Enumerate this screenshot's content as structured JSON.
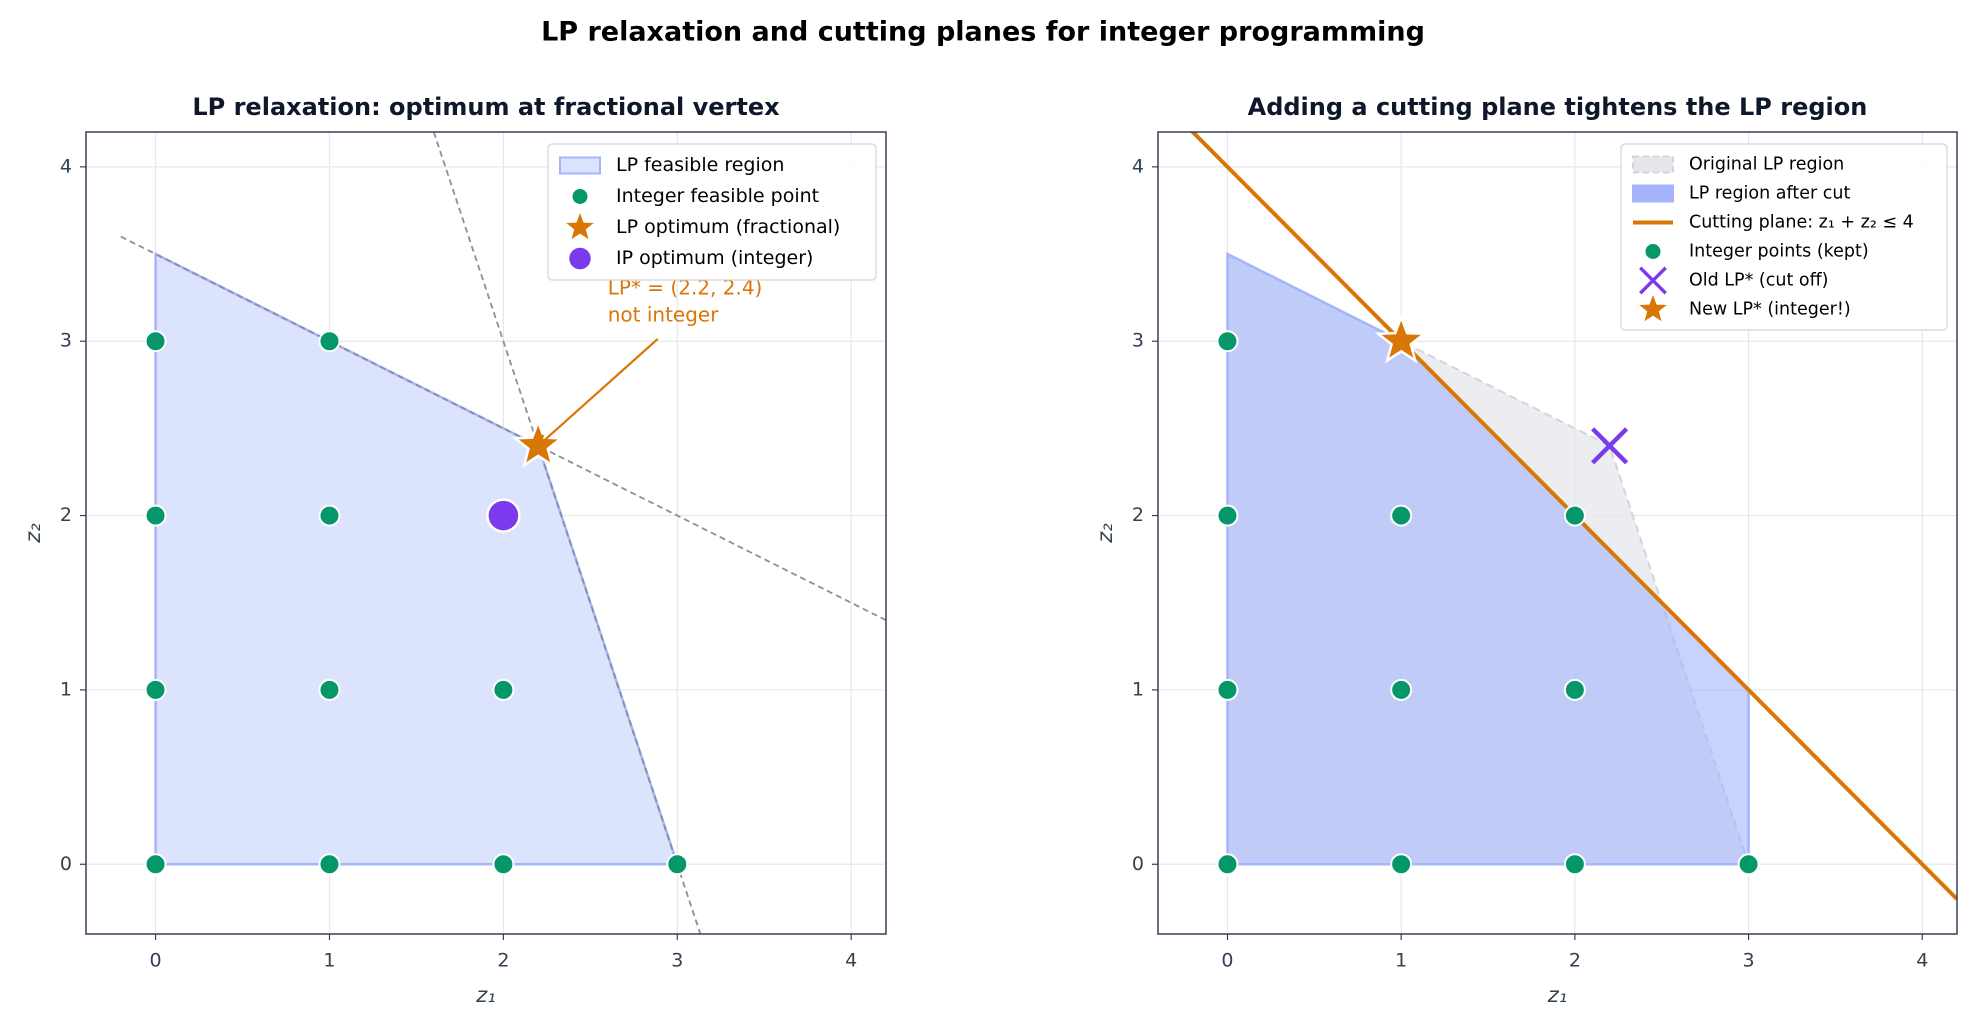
{
  "title": "LP relaxation and cutting planes for integer programming",
  "chart_data": [
    {
      "type": "scatter",
      "title": "LP relaxation: optimum at fractional vertex",
      "xlabel": "z₁",
      "ylabel": "z₂",
      "xlim": [
        -0.4,
        4.2
      ],
      "ylim": [
        -0.4,
        4.2
      ],
      "xticks": [
        0,
        1,
        2,
        3,
        4
      ],
      "yticks": [
        0,
        1,
        2,
        3,
        4
      ],
      "grid": true,
      "legend": "upper right",
      "series": [
        {
          "name": "LP feasible region",
          "kind": "region",
          "color": "#dbe3fd",
          "x": [
            0,
            3,
            2.2,
            0
          ],
          "y": [
            0,
            0,
            2.4,
            3.5
          ]
        },
        {
          "kind": "dashed",
          "color": "#8a8f9c",
          "x": [
            -0.2,
            4.2
          ],
          "y": [
            3.6,
            1.4
          ]
        },
        {
          "kind": "dashed",
          "color": "#8a8f9c",
          "x": [
            1.6,
            3.133
          ],
          "y": [
            4.2,
            -0.4
          ]
        },
        {
          "name": "Integer feasible point",
          "kind": "marker",
          "marker": "circle",
          "color": "#059669",
          "x": [
            0,
            1,
            2,
            3,
            0,
            1,
            2,
            0,
            1,
            0,
            1
          ],
          "y": [
            0,
            0,
            0,
            0,
            1,
            1,
            1,
            2,
            2,
            3,
            3
          ]
        },
        {
          "name": "LP optimum (fractional)",
          "kind": "marker",
          "marker": "star",
          "color": "#d97706",
          "x": [
            2.2
          ],
          "y": [
            2.4
          ]
        },
        {
          "name": "IP optimum (integer)",
          "kind": "marker",
          "marker": "bigcircle",
          "color": "#7c3aed",
          "x": [
            2
          ],
          "y": [
            2
          ]
        }
      ],
      "annotation": {
        "text": [
          "LP* = (2.2, 2.4)",
          "not integer"
        ],
        "color": "#d97706",
        "xy": [
          2.2,
          2.4
        ],
        "xytext": [
          2.6,
          3.3
        ]
      }
    },
    {
      "type": "scatter",
      "title": "Adding a cutting plane tightens the LP region",
      "xlabel": "z₁",
      "ylabel": "z₂",
      "xlim": [
        -0.4,
        4.2
      ],
      "ylim": [
        -0.4,
        4.2
      ],
      "xticks": [
        0,
        1,
        2,
        3,
        4
      ],
      "yticks": [
        0,
        1,
        2,
        3,
        4
      ],
      "grid": true,
      "legend": "upper right",
      "series": [
        {
          "name": "Original LP region",
          "kind": "region-gray",
          "color": "#e5e7eb",
          "x": [
            0,
            3,
            2.2,
            0
          ],
          "y": [
            0,
            0,
            2.4,
            3.5
          ]
        },
        {
          "name": "LP region after cut",
          "kind": "region",
          "color": "#a5b4fc",
          "x": [
            0,
            3,
            3,
            1,
            0
          ],
          "y": [
            0,
            0,
            1,
            3,
            3.5
          ]
        },
        {
          "name": "Cutting plane: z₁ + z₂ ≤ 4",
          "kind": "line",
          "color": "#d97706",
          "x": [
            -0.4,
            4.2
          ],
          "y": [
            4.4,
            -0.2
          ]
        },
        {
          "name": "Integer points (kept)",
          "kind": "marker",
          "marker": "circle",
          "color": "#059669",
          "x": [
            0,
            1,
            2,
            3,
            0,
            1,
            2,
            0,
            1,
            2,
            0
          ],
          "y": [
            0,
            0,
            0,
            0,
            1,
            1,
            1,
            2,
            2,
            2,
            3
          ]
        },
        {
          "name": "Old LP* (cut off)",
          "kind": "marker",
          "marker": "x",
          "color": "#7c3aed",
          "x": [
            2.2
          ],
          "y": [
            2.4
          ]
        },
        {
          "name": "New LP* (integer!)",
          "kind": "marker",
          "marker": "star",
          "color": "#d97706",
          "x": [
            1
          ],
          "y": [
            3
          ]
        }
      ]
    }
  ]
}
